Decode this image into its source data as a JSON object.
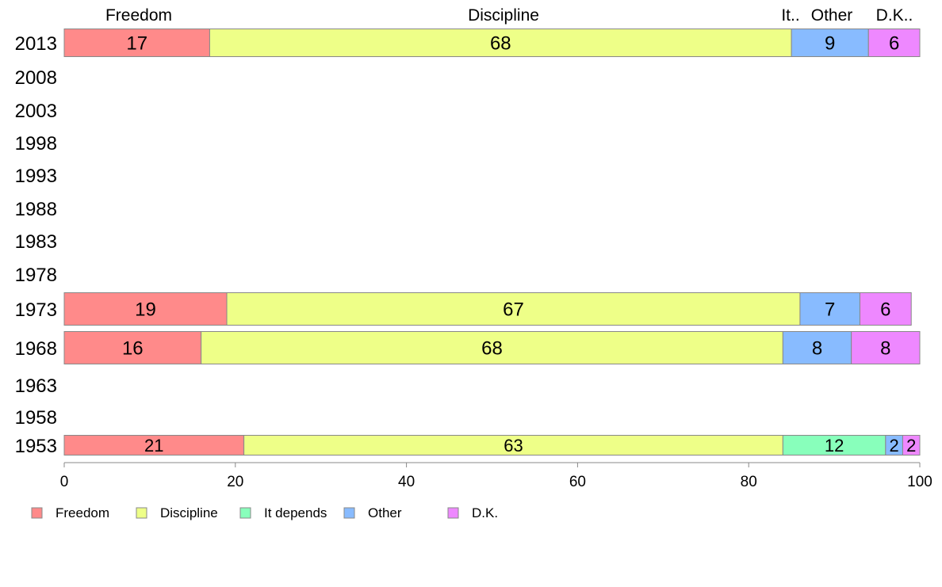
{
  "chart_data": {
    "type": "bar",
    "orientation": "horizontal",
    "stacked": true,
    "title": "",
    "xlabel": "",
    "ylabel": "",
    "xlim": [
      0,
      100
    ],
    "x_ticks": [
      0,
      20,
      40,
      60,
      80,
      100
    ],
    "categories": [
      "2013",
      "2008",
      "2003",
      "1998",
      "1993",
      "1988",
      "1983",
      "1978",
      "1973",
      "1968",
      "1963",
      "1958",
      "1953"
    ],
    "series": [
      {
        "name": "Freedom",
        "color": "#ff8a8a",
        "values": [
          17,
          null,
          null,
          null,
          null,
          null,
          null,
          null,
          19,
          16,
          null,
          null,
          21
        ]
      },
      {
        "name": "Discipline",
        "color": "#eeff88",
        "values": [
          68,
          null,
          null,
          null,
          null,
          null,
          null,
          null,
          67,
          68,
          null,
          null,
          63
        ]
      },
      {
        "name": "It depends",
        "color": "#88ffbb",
        "values": [
          0,
          null,
          null,
          null,
          null,
          null,
          null,
          null,
          0,
          0,
          null,
          null,
          12
        ]
      },
      {
        "name": "Other",
        "color": "#88bbff",
        "values": [
          9,
          null,
          null,
          null,
          null,
          null,
          null,
          null,
          7,
          8,
          null,
          null,
          2
        ]
      },
      {
        "name": "D.K.",
        "color": "#ee88ff",
        "values": [
          6,
          null,
          null,
          null,
          null,
          null,
          null,
          null,
          6,
          8,
          null,
          null,
          2
        ]
      }
    ],
    "top_labels": [
      {
        "text": "Freedom"
      },
      {
        "text": "Discipline"
      },
      {
        "text": "It.."
      },
      {
        "text": "Other"
      },
      {
        "text": "D.K.."
      }
    ],
    "grid": false,
    "legend_position": "bottom"
  }
}
